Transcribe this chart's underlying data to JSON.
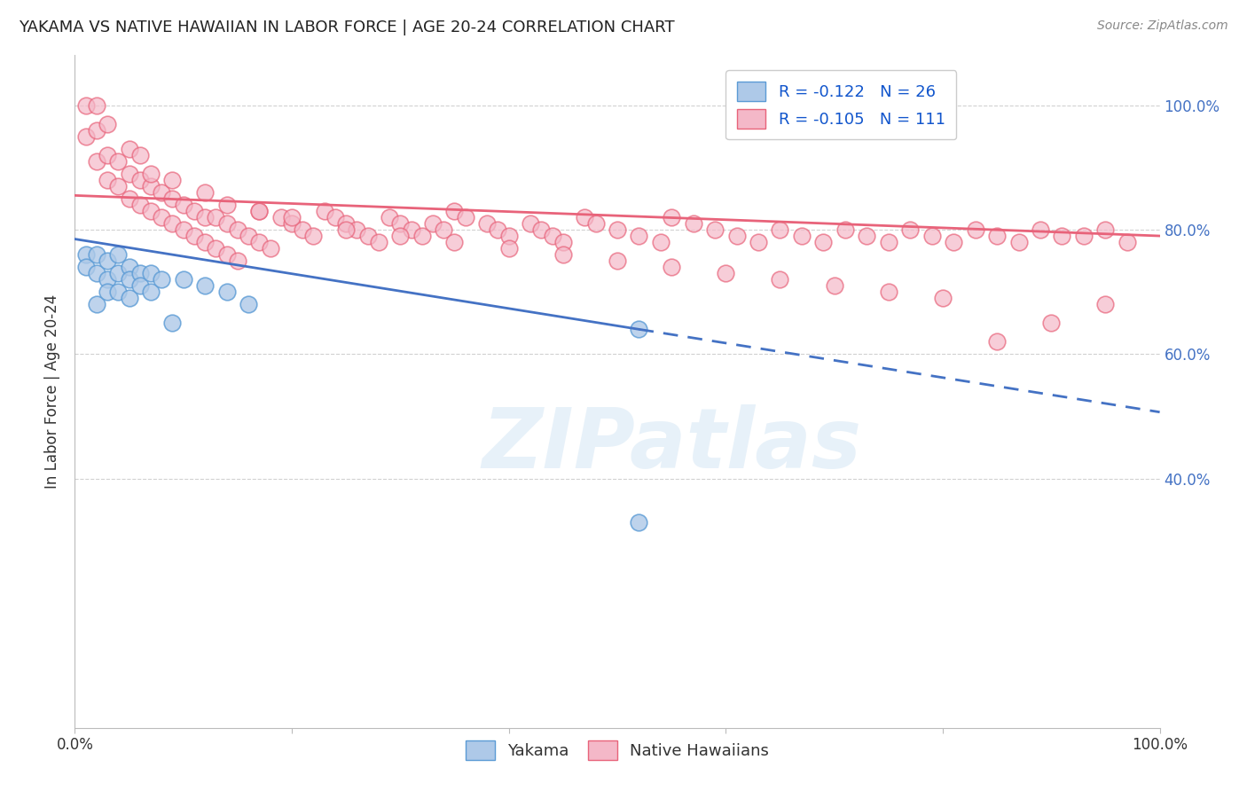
{
  "title": "YAKAMA VS NATIVE HAWAIIAN IN LABOR FORCE | AGE 20-24 CORRELATION CHART",
  "source": "Source: ZipAtlas.com",
  "ylabel": "In Labor Force | Age 20-24",
  "xlim": [
    0.0,
    1.0
  ],
  "ylim": [
    0.0,
    1.08
  ],
  "x_tick_labels": [
    "0.0%",
    "",
    "",
    "",
    "",
    "100.0%"
  ],
  "x_ticks": [
    0.0,
    0.2,
    0.4,
    0.6,
    0.8,
    1.0
  ],
  "y_tick_labels_right": [
    "100.0%",
    "80.0%",
    "60.0%",
    "40.0%"
  ],
  "y_tick_positions_right": [
    1.0,
    0.8,
    0.6,
    0.4
  ],
  "legend_R_yakama": "-0.122",
  "legend_N_yakama": "26",
  "legend_R_hawaiian": "-0.105",
  "legend_N_hawaiian": "111",
  "yakama_color": "#aec9e8",
  "yakama_edge": "#5b9bd5",
  "hawaiian_color": "#f4b8c8",
  "hawaiian_edge": "#e8637a",
  "trendline_yakama_color": "#4472c4",
  "trendline_hawaiian_color": "#e8637a",
  "background_color": "#ffffff",
  "watermark": "ZIPatlas",
  "grid_color": "#cccccc",
  "yakama_x": [
    0.01,
    0.01,
    0.02,
    0.02,
    0.02,
    0.03,
    0.03,
    0.03,
    0.04,
    0.04,
    0.04,
    0.05,
    0.05,
    0.05,
    0.06,
    0.06,
    0.07,
    0.07,
    0.08,
    0.09,
    0.1,
    0.12,
    0.14,
    0.16,
    0.52,
    0.52
  ],
  "yakama_y": [
    0.76,
    0.74,
    0.76,
    0.73,
    0.68,
    0.75,
    0.72,
    0.7,
    0.76,
    0.73,
    0.7,
    0.74,
    0.72,
    0.69,
    0.73,
    0.71,
    0.73,
    0.7,
    0.72,
    0.65,
    0.72,
    0.71,
    0.7,
    0.68,
    0.64,
    0.33
  ],
  "hawaiian_x": [
    0.01,
    0.01,
    0.02,
    0.02,
    0.02,
    0.03,
    0.03,
    0.03,
    0.04,
    0.04,
    0.05,
    0.05,
    0.05,
    0.06,
    0.06,
    0.06,
    0.07,
    0.07,
    0.08,
    0.08,
    0.09,
    0.09,
    0.1,
    0.1,
    0.11,
    0.11,
    0.12,
    0.12,
    0.13,
    0.13,
    0.14,
    0.14,
    0.15,
    0.15,
    0.16,
    0.17,
    0.17,
    0.18,
    0.19,
    0.2,
    0.21,
    0.22,
    0.23,
    0.24,
    0.25,
    0.26,
    0.27,
    0.28,
    0.29,
    0.3,
    0.31,
    0.32,
    0.33,
    0.34,
    0.35,
    0.36,
    0.38,
    0.39,
    0.4,
    0.42,
    0.43,
    0.44,
    0.45,
    0.47,
    0.48,
    0.5,
    0.52,
    0.54,
    0.55,
    0.57,
    0.59,
    0.61,
    0.63,
    0.65,
    0.67,
    0.69,
    0.71,
    0.73,
    0.75,
    0.77,
    0.79,
    0.81,
    0.83,
    0.85,
    0.87,
    0.89,
    0.91,
    0.93,
    0.95,
    0.97,
    0.07,
    0.09,
    0.12,
    0.14,
    0.17,
    0.2,
    0.25,
    0.3,
    0.35,
    0.4,
    0.45,
    0.5,
    0.55,
    0.6,
    0.65,
    0.7,
    0.75,
    0.8,
    0.85,
    0.9,
    0.95
  ],
  "hawaiian_y": [
    0.95,
    1.0,
    0.91,
    0.96,
    1.0,
    0.88,
    0.92,
    0.97,
    0.87,
    0.91,
    0.85,
    0.89,
    0.93,
    0.84,
    0.88,
    0.92,
    0.83,
    0.87,
    0.82,
    0.86,
    0.81,
    0.85,
    0.8,
    0.84,
    0.79,
    0.83,
    0.78,
    0.82,
    0.77,
    0.82,
    0.76,
    0.81,
    0.75,
    0.8,
    0.79,
    0.78,
    0.83,
    0.77,
    0.82,
    0.81,
    0.8,
    0.79,
    0.83,
    0.82,
    0.81,
    0.8,
    0.79,
    0.78,
    0.82,
    0.81,
    0.8,
    0.79,
    0.81,
    0.8,
    0.83,
    0.82,
    0.81,
    0.8,
    0.79,
    0.81,
    0.8,
    0.79,
    0.78,
    0.82,
    0.81,
    0.8,
    0.79,
    0.78,
    0.82,
    0.81,
    0.8,
    0.79,
    0.78,
    0.8,
    0.79,
    0.78,
    0.8,
    0.79,
    0.78,
    0.8,
    0.79,
    0.78,
    0.8,
    0.79,
    0.78,
    0.8,
    0.79,
    0.79,
    0.8,
    0.78,
    0.89,
    0.88,
    0.86,
    0.84,
    0.83,
    0.82,
    0.8,
    0.79,
    0.78,
    0.77,
    0.76,
    0.75,
    0.74,
    0.73,
    0.72,
    0.71,
    0.7,
    0.69,
    0.62,
    0.65,
    0.68
  ],
  "yakama_trendline_x0": 0.0,
  "yakama_trendline_x_solid_end": 0.52,
  "yakama_trendline_x1": 1.0,
  "yakama_trendline_y0": 0.785,
  "yakama_trendline_y_solid_end": 0.64,
  "yakama_trendline_y1": 0.507,
  "hawaiian_trendline_x0": 0.0,
  "hawaiian_trendline_x1": 1.0,
  "hawaiian_trendline_y0": 0.855,
  "hawaiian_trendline_y1": 0.79
}
